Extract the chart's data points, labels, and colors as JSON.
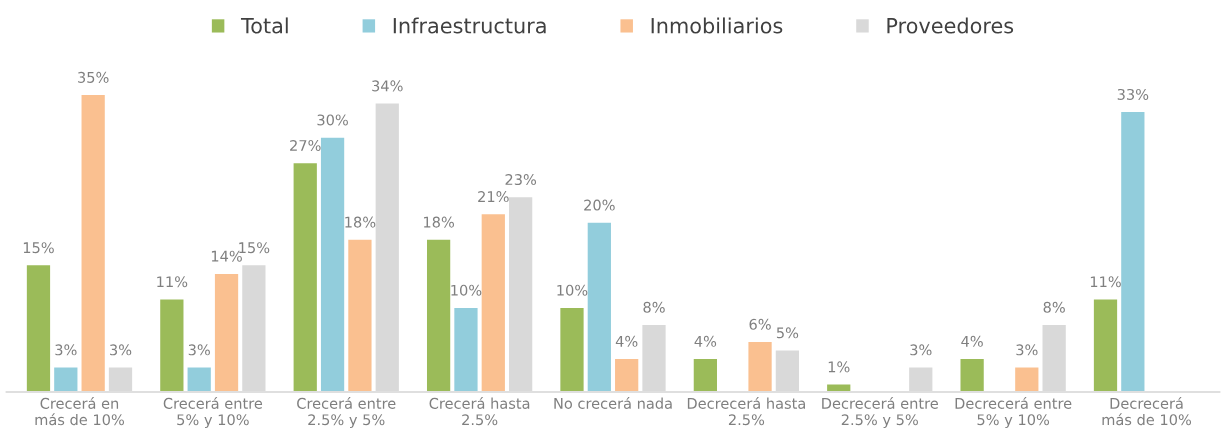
{
  "chart_data": {
    "type": "bar",
    "categories": [
      "Crecerá en\nmás de 10%",
      "Crecerá entre\n5% y 10%",
      "Crecerá entre\n2.5% y 5%",
      "Crecerá hasta\n2.5%",
      "No crecerá nada",
      "Decrecerá hasta\n2.5%",
      "Decrecerá entre\n2.5% y 5%",
      "Decrecerá entre\n5% y 10%",
      "Decrecerá\nmás de 10%"
    ],
    "series": [
      {
        "name": "Total",
        "color": "#9bbb59",
        "values": [
          15,
          11,
          27,
          18,
          10,
          4,
          1,
          4,
          11
        ],
        "value_labels": [
          "15%",
          "11%",
          "27%",
          "18%",
          "10%",
          "4%",
          "1%",
          "4%",
          "11%"
        ]
      },
      {
        "name": "Infraestructura",
        "color": "#92cddc",
        "values": [
          3,
          3,
          30,
          10,
          20,
          null,
          null,
          null,
          33
        ],
        "value_labels": [
          "3%",
          "3%",
          "30%",
          "10%",
          "20%",
          null,
          null,
          null,
          "33%"
        ]
      },
      {
        "name": "Inmobiliarios",
        "color": "#fac090",
        "values": [
          35,
          14,
          18,
          21,
          4,
          6,
          null,
          3,
          null
        ],
        "value_labels": [
          "35%",
          "14%",
          "18%",
          "21%",
          "4%",
          "6%",
          null,
          "3%",
          null
        ]
      },
      {
        "name": "Proveedores",
        "color": "#d9d9d9",
        "values": [
          3,
          15,
          34,
          23,
          8,
          5,
          3,
          8,
          null
        ],
        "value_labels": [
          "3%",
          "15%",
          "34%",
          "23%",
          "8%",
          "5%",
          "3%",
          "8%",
          null
        ]
      }
    ],
    "legend": "top",
    "grid": false
  }
}
